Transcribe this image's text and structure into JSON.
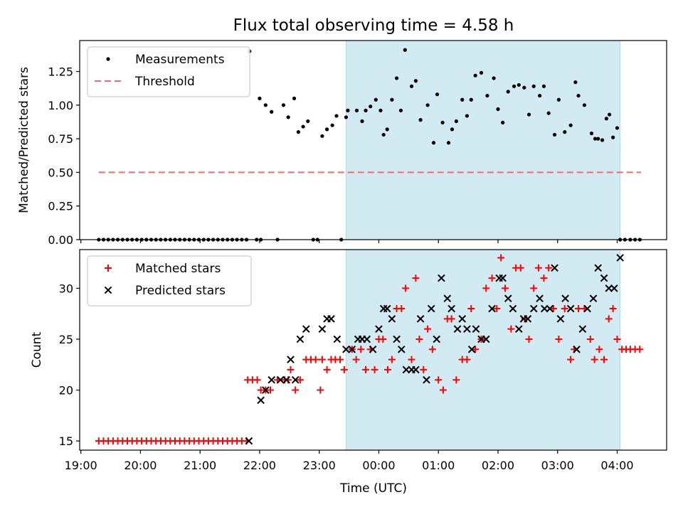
{
  "title": "Flux total observing time = 4.58 h",
  "colors": {
    "shade": "#add8e6",
    "measurement": "#000000",
    "threshold": "#ff6666",
    "matched": "#ff0000",
    "predicted": "#000000"
  },
  "xaxis": {
    "label": "Time (UTC)",
    "range_hours": [
      18.98,
      28.83
    ],
    "tick_hours": [
      19,
      20,
      21,
      22,
      23,
      24,
      25,
      26,
      27,
      28
    ],
    "tick_labels": [
      "19:00",
      "20:00",
      "21:00",
      "22:00",
      "23:00",
      "00:00",
      "01:00",
      "02:00",
      "03:00",
      "04:00"
    ]
  },
  "chart_data": [
    {
      "type": "scatter",
      "ylabel": "Matched/Predicted stars",
      "ylim": [
        0,
        1.48
      ],
      "yticks": [
        0.0,
        0.25,
        0.5,
        0.75,
        1.0,
        1.25
      ],
      "ytick_labels": [
        "0.00",
        "0.25",
        "0.50",
        "0.75",
        "1.00",
        "1.25"
      ],
      "legend_position": "upper-left",
      "shaded_x": [
        23.45,
        28.05
      ],
      "series": [
        {
          "name": "Measurements",
          "marker": "dot",
          "x": [
            19.3,
            19.38,
            19.46,
            19.54,
            19.62,
            19.7,
            19.78,
            19.86,
            19.94,
            20.02,
            20.1,
            20.18,
            20.26,
            20.34,
            20.42,
            20.5,
            20.58,
            20.66,
            20.74,
            20.82,
            20.9,
            20.98,
            21.06,
            21.14,
            21.22,
            21.3,
            21.38,
            21.46,
            21.54,
            21.62,
            21.7,
            21.78,
            21.83,
            21.95,
            22.02,
            22.0,
            22.1,
            22.2,
            22.3,
            22.4,
            22.48,
            22.58,
            22.65,
            22.73,
            22.81,
            22.9,
            22.97,
            23.05,
            23.13,
            23.22,
            23.29,
            23.37,
            23.45,
            23.48,
            23.63,
            23.72,
            23.78,
            23.86,
            23.95,
            24.03,
            24.08,
            24.14,
            24.22,
            24.3,
            24.37,
            24.44,
            24.55,
            24.62,
            24.7,
            24.82,
            24.92,
            24.98,
            25.07,
            25.17,
            25.23,
            25.3,
            25.4,
            25.48,
            25.55,
            25.62,
            25.72,
            25.82,
            25.93,
            26.0,
            26.08,
            26.17,
            26.27,
            26.35,
            26.44,
            26.52,
            26.6,
            26.7,
            26.77,
            26.85,
            26.95,
            27.02,
            27.12,
            27.22,
            27.3,
            27.35,
            27.45,
            27.57,
            27.63,
            27.68,
            27.75,
            27.82,
            27.87,
            27.93,
            28.0,
            28.05,
            28.13,
            28.22,
            28.3,
            28.38
          ],
          "y": [
            0,
            0,
            0,
            0,
            0,
            0,
            0,
            0,
            0,
            0,
            0,
            0,
            0,
            0,
            0,
            0,
            0,
            0,
            0,
            0,
            0,
            0,
            0,
            0,
            0,
            0,
            0,
            0,
            0,
            0,
            0,
            0,
            1.4,
            0,
            0,
            1.05,
            1.0,
            0.95,
            0,
            1.0,
            0.91,
            1.05,
            0.8,
            0.84,
            0.88,
            0,
            0,
            0.77,
            0.82,
            0.85,
            0.92,
            0,
            0.91,
            0.96,
            0.96,
            0.88,
            0.96,
            0.99,
            1.04,
            0.96,
            0.78,
            0.82,
            1.04,
            1.2,
            0.96,
            1.41,
            1.14,
            1.18,
            0.89,
            1.0,
            0.72,
            1.08,
            0.87,
            0.72,
            0.82,
            0.88,
            1.04,
            0.92,
            1.04,
            1.22,
            1.24,
            1.07,
            1.2,
            0.97,
            0.87,
            1.1,
            1.14,
            1.15,
            1.13,
            0.93,
            1.14,
            1.07,
            1.14,
            0.94,
            0.78,
            1.04,
            0.8,
            0.85,
            1.17,
            1.07,
            1.0,
            0.79,
            0.75,
            0.75,
            0.74,
            0.9,
            0.93,
            0.76,
            0.83,
            0,
            0,
            0,
            0,
            0
          ]
        },
        {
          "name": "Threshold",
          "style": "dashed-line",
          "x": [
            19.3,
            28.4
          ],
          "y": [
            0.5,
            0.5
          ]
        }
      ]
    },
    {
      "type": "scatter",
      "ylabel": "Count",
      "ylim": [
        14.1,
        33.8
      ],
      "yticks": [
        15,
        20,
        25,
        30
      ],
      "ytick_labels": [
        "15",
        "20",
        "25",
        "30"
      ],
      "legend_position": "upper-left",
      "shaded_x": [
        23.45,
        28.05
      ],
      "series": [
        {
          "name": "Matched stars",
          "marker": "plus",
          "x": [
            19.3,
            19.38,
            19.46,
            19.54,
            19.62,
            19.7,
            19.78,
            19.86,
            19.94,
            20.02,
            20.1,
            20.18,
            20.26,
            20.34,
            20.42,
            20.5,
            20.58,
            20.66,
            20.74,
            20.82,
            20.9,
            20.98,
            21.06,
            21.14,
            21.22,
            21.3,
            21.38,
            21.46,
            21.54,
            21.62,
            21.7,
            21.78,
            21.8,
            21.88,
            21.96,
            22.02,
            22.1,
            22.18,
            22.3,
            22.42,
            22.48,
            22.52,
            22.6,
            22.68,
            22.78,
            22.86,
            22.94,
            23.02,
            23.05,
            23.13,
            23.2,
            23.27,
            23.35,
            23.42,
            23.55,
            23.62,
            23.7,
            23.78,
            23.86,
            23.93,
            24.0,
            24.07,
            24.15,
            24.22,
            24.3,
            24.38,
            24.45,
            24.55,
            24.62,
            24.68,
            24.75,
            24.82,
            24.9,
            25.0,
            25.08,
            25.15,
            25.22,
            25.3,
            25.4,
            25.48,
            25.55,
            25.62,
            25.72,
            25.8,
            25.9,
            25.98,
            26.05,
            26.12,
            26.22,
            26.3,
            26.38,
            26.45,
            26.52,
            26.6,
            26.68,
            26.77,
            26.85,
            26.93,
            27.02,
            27.12,
            27.22,
            27.28,
            27.35,
            27.45,
            27.55,
            27.62,
            27.7,
            27.78,
            27.86,
            27.93,
            28.0,
            28.08,
            28.15,
            28.22,
            28.3,
            28.38
          ],
          "y": [
            15,
            15,
            15,
            15,
            15,
            15,
            15,
            15,
            15,
            15,
            15,
            15,
            15,
            15,
            15,
            15,
            15,
            15,
            15,
            15,
            15,
            15,
            15,
            15,
            15,
            15,
            15,
            15,
            15,
            15,
            15,
            15,
            21,
            21,
            21,
            20,
            20,
            20,
            21,
            21,
            21,
            22,
            20,
            21,
            23,
            23,
            23,
            20,
            23,
            22,
            23,
            23,
            23,
            22,
            24,
            23,
            24,
            22,
            24,
            22,
            25,
            25,
            22,
            23,
            28,
            28,
            30,
            23,
            31,
            25,
            22,
            26,
            24,
            21,
            20,
            27,
            27,
            21,
            23,
            23,
            28,
            24,
            25,
            30,
            31,
            28,
            33,
            30,
            26,
            32,
            32,
            27,
            25,
            30,
            32,
            31,
            32,
            28,
            25,
            28,
            23,
            24,
            28,
            28,
            25,
            23,
            24,
            23,
            27,
            28,
            25,
            24,
            24,
            24,
            24,
            24
          ]
        },
        {
          "name": "Predicted stars",
          "marker": "x",
          "x": [
            21.82,
            22.02,
            22.1,
            22.2,
            22.35,
            22.45,
            22.52,
            22.6,
            22.68,
            22.78,
            23.05,
            23.13,
            23.2,
            23.3,
            23.45,
            23.55,
            23.65,
            23.72,
            23.8,
            23.9,
            24.0,
            24.08,
            24.14,
            24.22,
            24.3,
            24.38,
            24.46,
            24.55,
            24.62,
            24.7,
            24.8,
            24.88,
            24.97,
            25.05,
            25.15,
            25.22,
            25.32,
            25.4,
            25.48,
            25.56,
            25.63,
            25.72,
            25.8,
            25.9,
            26.02,
            26.08,
            26.17,
            26.25,
            26.35,
            26.43,
            26.5,
            26.6,
            26.7,
            26.78,
            26.87,
            26.95,
            27.05,
            27.13,
            27.22,
            27.32,
            27.42,
            27.5,
            27.6,
            27.68,
            27.78,
            27.86,
            27.95,
            28.05
          ],
          "y": [
            15,
            19,
            20,
            21,
            21,
            21,
            23,
            21,
            25,
            26,
            26,
            27,
            27,
            25,
            24,
            24,
            25,
            25,
            25,
            24,
            26,
            28,
            28,
            27,
            25,
            24,
            22,
            22,
            22,
            27,
            21,
            28,
            25,
            31,
            29,
            28,
            26,
            27,
            26,
            24,
            26,
            25,
            25,
            28,
            31,
            31,
            29,
            28,
            26,
            27,
            27,
            28,
            29,
            28,
            28,
            32,
            27,
            29,
            28,
            24,
            26,
            28,
            29,
            32,
            31,
            30,
            30,
            33
          ]
        }
      ]
    }
  ]
}
